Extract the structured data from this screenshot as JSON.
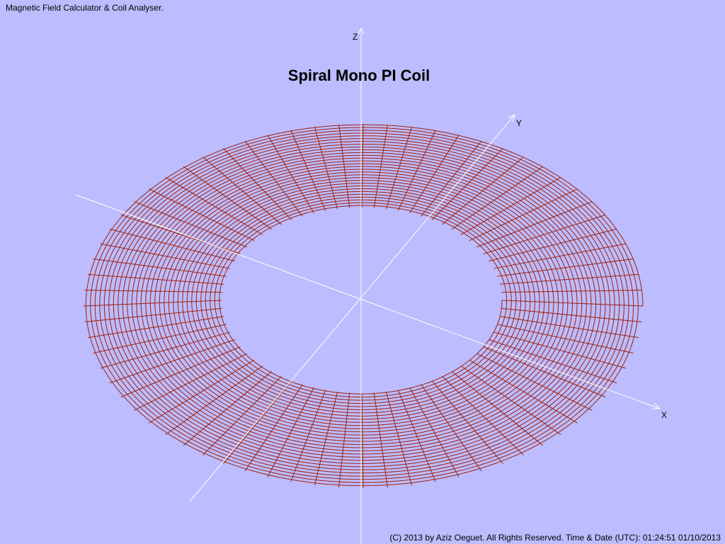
{
  "app_title": "Magnetic Field Calculator & Coil Analyser.",
  "title": "Spiral Mono PI Coil",
  "axes": {
    "z": "Z",
    "y": "Y",
    "x": "X"
  },
  "footer": "(C) 2013  by Aziz Oeguet. All Rights Reserved.  Time & Date (UTC): 01:24:51  01/10/2013"
}
